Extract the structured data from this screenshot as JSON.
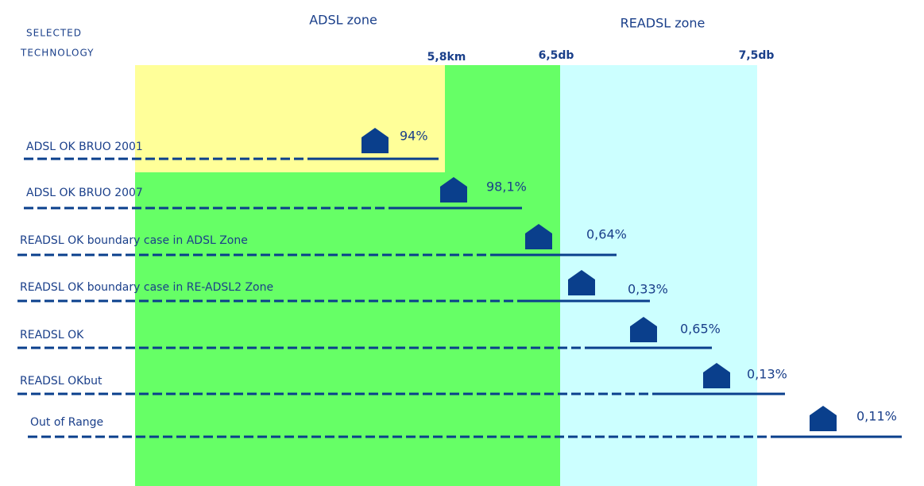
{
  "header": {
    "selected_technology": [
      "SELECTED",
      "TECHNOLOGY"
    ],
    "adsl_zone": "ADSL zone",
    "readsl_zone": "READSL zone"
  },
  "boundaries": [
    "5,8km",
    "6,5db",
    "7,5db"
  ],
  "rows": [
    {
      "label": "ADSL OK BRUO 2001",
      "share": "94%"
    },
    {
      "label": "ADSL OK BRUO 2007",
      "share": "98,1%"
    },
    {
      "label": "READSL OK boundary case in ADSL Zone",
      "share": "0,64%"
    },
    {
      "label": "READSL OK boundary case in RE-ADSL2 Zone",
      "share": "0,33%"
    },
    {
      "label": "READSL OK",
      "share": "0,65%"
    },
    {
      "label": "READSL OKbut",
      "share": "0,13%"
    },
    {
      "label": "Out of Range",
      "share": "0,11%"
    }
  ]
}
